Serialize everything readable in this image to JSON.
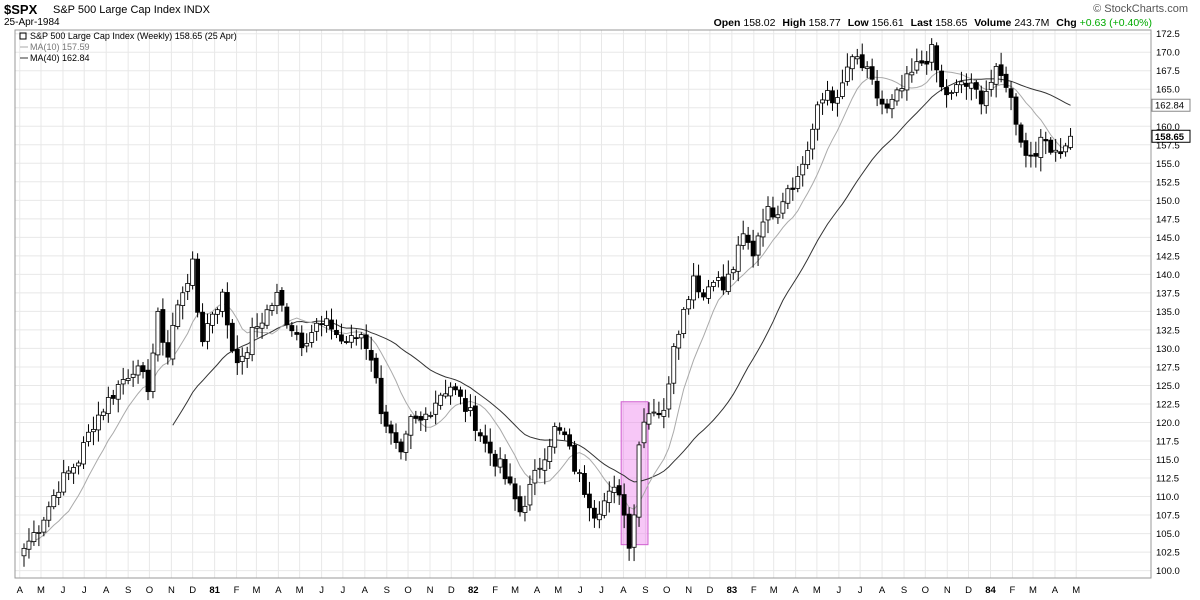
{
  "header": {
    "symbol": "$SPX",
    "name": "S&P 500 Large Cap Index  INDX",
    "date": "25-Apr-1984",
    "logo": "© StockCharts.com",
    "quote": {
      "open_label": "Open",
      "open": "158.02",
      "high_label": "High",
      "high": "158.77",
      "low_label": "Low",
      "low": "156.61",
      "last_label": "Last",
      "last": "158.65",
      "volume_label": "Volume",
      "volume": "243.7M",
      "chg_label": "Chg",
      "chg": "+0.63 (+0.40%)",
      "chg_color": "#00aa00"
    }
  },
  "legend": {
    "main": "S&P 500 Large Cap Index (Weekly) 158.65 (25 Apr)",
    "ma10": "MA(10) 157.59",
    "ma40": "MA(40) 162.84"
  },
  "colors": {
    "ma10": "#aaaaaa",
    "ma40": "#333333",
    "highlight": "#ee82ee",
    "grid": "#e8e8e8",
    "last_tag_border": "#000000"
  },
  "chart_data": {
    "type": "candlestick",
    "title": "S&P 500 Large Cap Index (Weekly)",
    "yaxis": {
      "side": "right",
      "ylim": [
        99,
        173
      ],
      "ticks": [
        100,
        102.5,
        105,
        107.5,
        110,
        112.5,
        115,
        117.5,
        120,
        122.5,
        125,
        127.5,
        130,
        132.5,
        135,
        137.5,
        140,
        142.5,
        145,
        147.5,
        150,
        152.5,
        155,
        157.5,
        160,
        162.5,
        165,
        167.5,
        170,
        172.5
      ],
      "tick_labels": [
        "100.0",
        "102.5",
        "105.0",
        "107.5",
        "110.0",
        "112.5",
        "115.0",
        "117.5",
        "120.0",
        "122.5",
        "125.0",
        "127.5",
        "130.0",
        "132.5",
        "135.0",
        "137.5",
        "140.0",
        "142.5",
        "145.0",
        "147.5",
        "150.0",
        "152.5",
        "155.0",
        "157.5",
        "160.0",
        "162.5",
        "165.0",
        "167.5",
        "170.0",
        "172.5"
      ],
      "tags": [
        {
          "label": "162.84",
          "value": 162.84,
          "style": "ma40"
        },
        {
          "label": "158.65",
          "value": 158.65,
          "style": "last"
        }
      ]
    },
    "xaxis": {
      "labels": [
        "A",
        "M",
        "J",
        "J",
        "A",
        "S",
        "O",
        "N",
        "D",
        "81",
        "F",
        "M",
        "A",
        "M",
        "J",
        "J",
        "A",
        "S",
        "O",
        "N",
        "D",
        "82",
        "F",
        "M",
        "A",
        "M",
        "J",
        "J",
        "A",
        "S",
        "O",
        "N",
        "D",
        "83",
        "F",
        "M",
        "A",
        "M",
        "J",
        "J",
        "A",
        "S",
        "O",
        "N",
        "D",
        "84",
        "F",
        "M",
        "A",
        "M"
      ],
      "bold": [
        "81",
        "82",
        "83",
        "84"
      ]
    },
    "highlight": {
      "x_from": "1982-08-02",
      "x_to": "1982-08-30",
      "y_from": 103.5,
      "y_to": 122.8
    },
    "anchors": [
      [
        "1980-04-07",
        103
      ],
      [
        "1980-04-28",
        106
      ],
      [
        "1980-05-26",
        111.5
      ],
      [
        "1980-06-23",
        115
      ],
      [
        "1980-07-14",
        120
      ],
      [
        "1980-07-28",
        122
      ],
      [
        "1980-08-18",
        125
      ],
      [
        "1980-09-08",
        127.5
      ],
      [
        "1980-09-29",
        125
      ],
      [
        "1980-10-13",
        134
      ],
      [
        "1980-10-27",
        129
      ],
      [
        "1980-11-03",
        133
      ],
      [
        "1980-11-17",
        138
      ],
      [
        "1980-11-28",
        141
      ],
      [
        "1980-12-08",
        135
      ],
      [
        "1980-12-15",
        131.5
      ],
      [
        "1980-12-29",
        135
      ],
      [
        "1981-01-09",
        137
      ],
      [
        "1981-01-26",
        130
      ],
      [
        "1981-02-09",
        128
      ],
      [
        "1981-02-23",
        132
      ],
      [
        "1981-03-16",
        135
      ],
      [
        "1981-03-30",
        137
      ],
      [
        "1981-04-13",
        134
      ],
      [
        "1981-05-04",
        131
      ],
      [
        "1981-05-25",
        133
      ],
      [
        "1981-06-15",
        133
      ],
      [
        "1981-06-29",
        131
      ],
      [
        "1981-07-13",
        131
      ],
      [
        "1981-07-27",
        132
      ],
      [
        "1981-08-10",
        129
      ],
      [
        "1981-08-24",
        122
      ],
      [
        "1981-09-08",
        118
      ],
      [
        "1981-09-21",
        115
      ],
      [
        "1981-10-05",
        120
      ],
      [
        "1981-10-19",
        120
      ],
      [
        "1981-11-02",
        122
      ],
      [
        "1981-11-16",
        124
      ],
      [
        "1981-11-30",
        125
      ],
      [
        "1981-12-14",
        123
      ],
      [
        "1982-01-04",
        120
      ],
      [
        "1982-01-18",
        117
      ],
      [
        "1982-02-08",
        114
      ],
      [
        "1982-02-22",
        111
      ],
      [
        "1982-03-08",
        108
      ],
      [
        "1982-03-22",
        111
      ],
      [
        "1982-04-12",
        116
      ],
      [
        "1982-04-26",
        119
      ],
      [
        "1982-05-10",
        118
      ],
      [
        "1982-05-24",
        114
      ],
      [
        "1982-06-07",
        111
      ],
      [
        "1982-06-21",
        108
      ],
      [
        "1982-07-12",
        110
      ],
      [
        "1982-07-26",
        111
      ],
      [
        "1982-08-09",
        104
      ],
      [
        "1982-08-16",
        108
      ],
      [
        "1982-08-23",
        117
      ],
      [
        "1982-08-30",
        121
      ],
      [
        "1982-09-13",
        122
      ],
      [
        "1982-09-27",
        121
      ],
      [
        "1982-10-11",
        131
      ],
      [
        "1982-10-25",
        135
      ],
      [
        "1982-11-08",
        140
      ],
      [
        "1982-11-22",
        137
      ],
      [
        "1982-12-06",
        140
      ],
      [
        "1982-12-20",
        138
      ],
      [
        "1983-01-03",
        141
      ],
      [
        "1983-01-17",
        145
      ],
      [
        "1983-01-31",
        143
      ],
      [
        "1983-02-14",
        148
      ],
      [
        "1983-03-07",
        149
      ],
      [
        "1983-03-21",
        152
      ],
      [
        "1983-04-04",
        153
      ],
      [
        "1983-04-18",
        157
      ],
      [
        "1983-05-02",
        162
      ],
      [
        "1983-05-16",
        165
      ],
      [
        "1983-05-30",
        163
      ],
      [
        "1983-06-13",
        168
      ],
      [
        "1983-06-27",
        169
      ],
      [
        "1983-07-11",
        167
      ],
      [
        "1983-07-25",
        164
      ],
      [
        "1983-08-08",
        162
      ],
      [
        "1983-08-22",
        164
      ],
      [
        "1983-09-05",
        166
      ],
      [
        "1983-09-19",
        168
      ],
      [
        "1983-10-10",
        170
      ],
      [
        "1983-10-24",
        165
      ],
      [
        "1983-11-07",
        164
      ],
      [
        "1983-11-21",
        166
      ],
      [
        "1983-12-05",
        165
      ],
      [
        "1983-12-19",
        164
      ],
      [
        "1984-01-09",
        167
      ],
      [
        "1984-01-23",
        166
      ],
      [
        "1984-02-06",
        161
      ],
      [
        "1984-02-20",
        156
      ],
      [
        "1984-03-05",
        157
      ],
      [
        "1984-03-19",
        158
      ],
      [
        "1984-04-02",
        157
      ],
      [
        "1984-04-16",
        157
      ],
      [
        "1984-04-23",
        158.65
      ]
    ],
    "ma10_start": "1980-04-07",
    "ma40_start": "1980-11-03",
    "ma40_end_value": 162.84,
    "ma10_end_value": 157.59
  }
}
